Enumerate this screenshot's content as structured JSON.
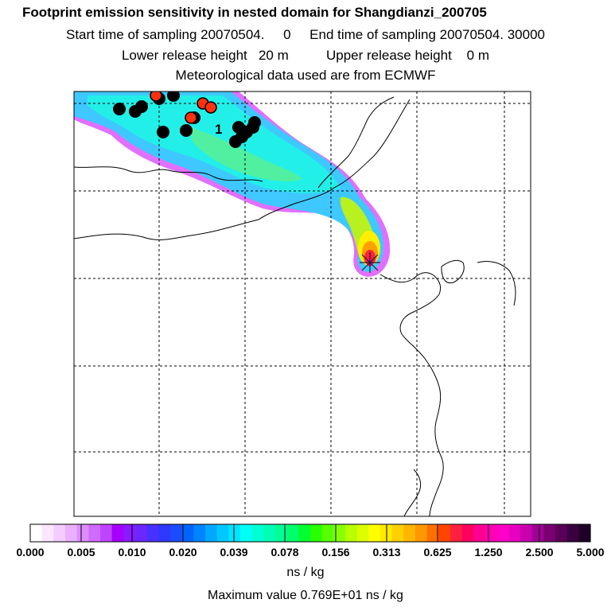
{
  "titles": {
    "line1": "Footprint emission sensitivity in nested domain for Shangdianzi_200705",
    "line2": "Start time of sampling 20070504.     0     End time of sampling 20070504. 30000",
    "line3": "Lower release height   20 m          Upper release height    0 m",
    "line4": "Meteorological data used are from ECMWF"
  },
  "map": {
    "cluster_label": "1",
    "release_site_marker": "asterisk-star",
    "plume_colors": {
      "edge": "#e070ff",
      "outer": "#3ec8ff",
      "main": "#22f0e8",
      "mid": "#50f0a0",
      "inner": "#b8f020",
      "core_yellow": "#fff000",
      "core_orange": "#ffa000",
      "core_red": "#ff2040",
      "core_magenta": "#ff00a0"
    },
    "cluster_colors": {
      "black": "#000000",
      "red": "#ff3010"
    }
  },
  "colorbar": {
    "labels": [
      "0.000",
      "0.005",
      "0.010",
      "0.020",
      "0.039",
      "0.078",
      "0.156",
      "0.313",
      "0.625",
      "1.250",
      "2.500",
      "5.000"
    ],
    "colors": [
      "#ffffff",
      "#fbe6ff",
      "#f4ccff",
      "#eab0ff",
      "#dd8cff",
      "#cf6cff",
      "#bf44ff",
      "#a600ff",
      "#8a1aff",
      "#6a28ff",
      "#4a30ff",
      "#2e38ff",
      "#1c4cff",
      "#0064ff",
      "#0084ff",
      "#00a8ff",
      "#00c8ff",
      "#00e4ff",
      "#00fff4",
      "#00ffd4",
      "#00ffb4",
      "#00ff94",
      "#00ff6a",
      "#00ff2e",
      "#28ff00",
      "#58ff00",
      "#88ff00",
      "#b8ff00",
      "#dcff00",
      "#ffff00",
      "#ffea00",
      "#ffd000",
      "#ffb600",
      "#ff9800",
      "#ff7000",
      "#ff4400",
      "#ff2040",
      "#ff0060",
      "#ff0090",
      "#ff00b4",
      "#ff00c8",
      "#e800c0",
      "#c800b0",
      "#a00098",
      "#780070",
      "#5a0058",
      "#3a0040",
      "#200028"
    ],
    "units": "ns / kg",
    "max_value_text": "Maximum value  0.769E+01 ns / kg"
  }
}
